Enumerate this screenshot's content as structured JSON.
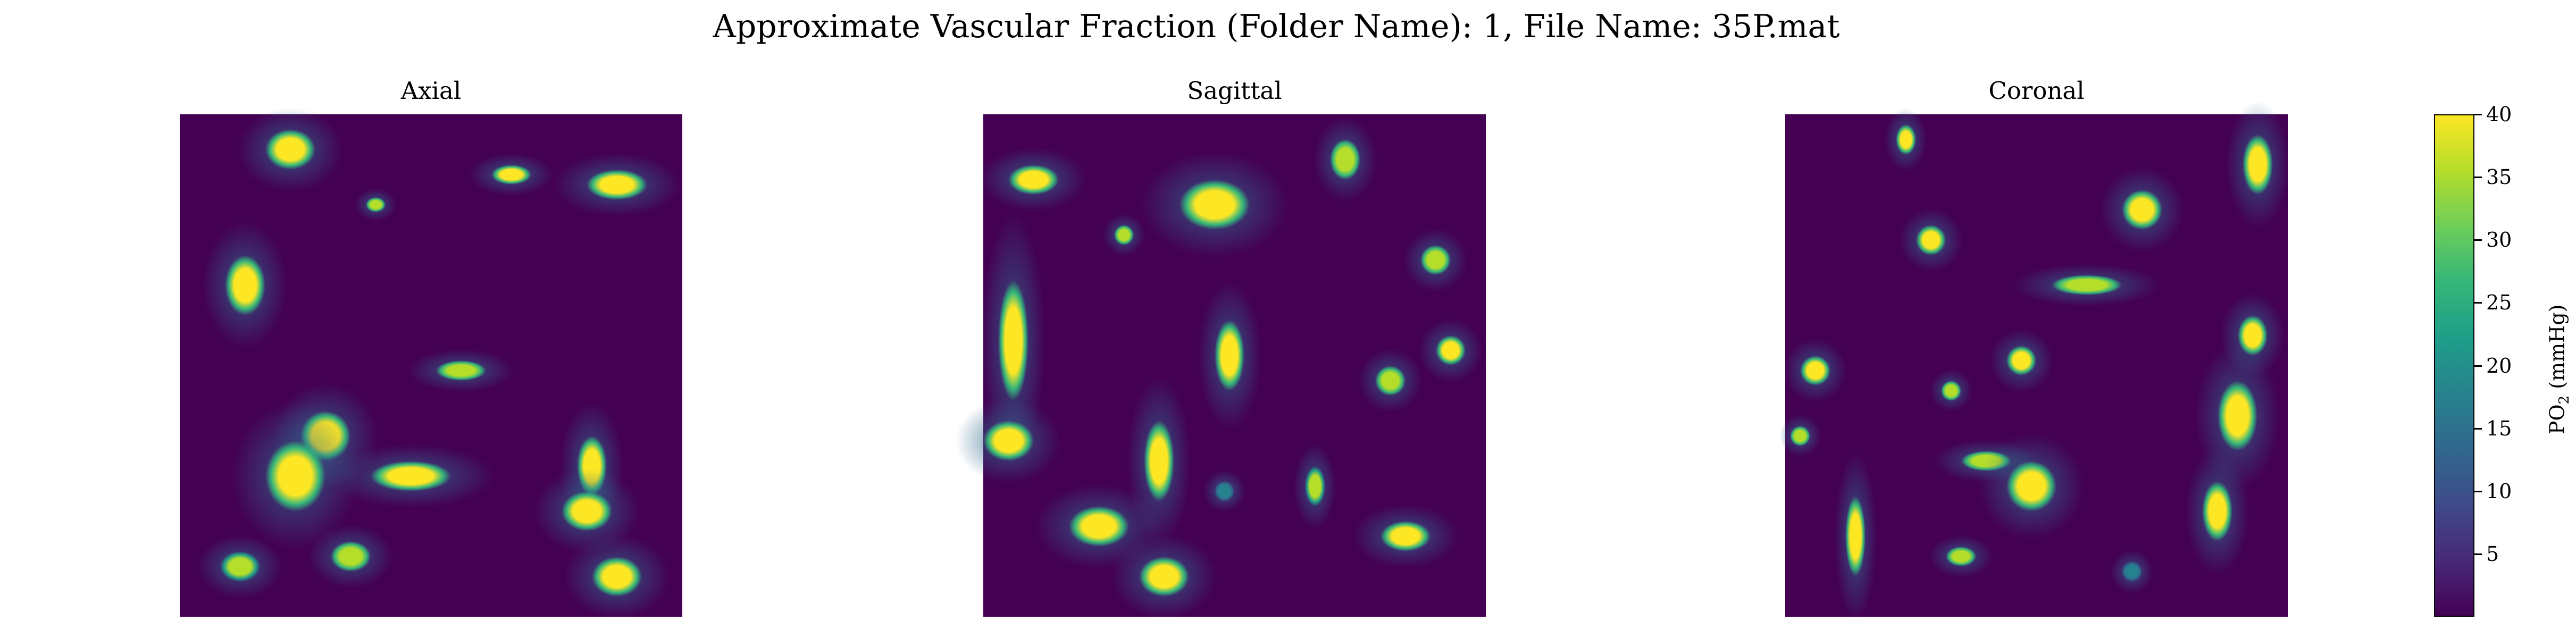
{
  "chart_data": {
    "type": "heatmap",
    "title": "Approximate Vascular Fraction (Folder Name): 1, File Name: 35P.mat",
    "colormap": "viridis",
    "panels": [
      {
        "title": "Axial",
        "blobs": [
          {
            "x": 0.22,
            "y": 0.07,
            "rx": 0.05,
            "ry": 0.04,
            "v": 40
          },
          {
            "x": 0.39,
            "y": 0.18,
            "rx": 0.02,
            "ry": 0.015,
            "v": 36
          },
          {
            "x": 0.66,
            "y": 0.12,
            "rx": 0.04,
            "ry": 0.02,
            "v": 38
          },
          {
            "x": 0.87,
            "y": 0.14,
            "rx": 0.06,
            "ry": 0.03,
            "v": 40
          },
          {
            "x": 0.13,
            "y": 0.34,
            "rx": 0.04,
            "ry": 0.06,
            "v": 38
          },
          {
            "x": 0.56,
            "y": 0.51,
            "rx": 0.05,
            "ry": 0.02,
            "v": 36
          },
          {
            "x": 0.29,
            "y": 0.64,
            "rx": 0.05,
            "ry": 0.05,
            "v": 40
          },
          {
            "x": 0.23,
            "y": 0.72,
            "rx": 0.06,
            "ry": 0.07,
            "v": 40
          },
          {
            "x": 0.46,
            "y": 0.72,
            "rx": 0.08,
            "ry": 0.03,
            "v": 38
          },
          {
            "x": 0.82,
            "y": 0.7,
            "rx": 0.03,
            "ry": 0.06,
            "v": 40
          },
          {
            "x": 0.81,
            "y": 0.79,
            "rx": 0.05,
            "ry": 0.04,
            "v": 40
          },
          {
            "x": 0.34,
            "y": 0.88,
            "rx": 0.04,
            "ry": 0.03,
            "v": 36
          },
          {
            "x": 0.12,
            "y": 0.9,
            "rx": 0.04,
            "ry": 0.03,
            "v": 34
          },
          {
            "x": 0.87,
            "y": 0.92,
            "rx": 0.05,
            "ry": 0.04,
            "v": 40
          }
        ]
      },
      {
        "title": "Sagittal",
        "blobs": [
          {
            "x": 0.1,
            "y": 0.13,
            "rx": 0.05,
            "ry": 0.03,
            "v": 38
          },
          {
            "x": 0.72,
            "y": 0.09,
            "rx": 0.03,
            "ry": 0.04,
            "v": 36
          },
          {
            "x": 0.28,
            "y": 0.24,
            "rx": 0.02,
            "ry": 0.02,
            "v": 36
          },
          {
            "x": 0.46,
            "y": 0.18,
            "rx": 0.07,
            "ry": 0.05,
            "v": 38
          },
          {
            "x": 0.9,
            "y": 0.29,
            "rx": 0.03,
            "ry": 0.03,
            "v": 36
          },
          {
            "x": 0.06,
            "y": 0.45,
            "rx": 0.03,
            "ry": 0.12,
            "v": 40
          },
          {
            "x": 0.49,
            "y": 0.48,
            "rx": 0.03,
            "ry": 0.07,
            "v": 38
          },
          {
            "x": 0.93,
            "y": 0.47,
            "rx": 0.03,
            "ry": 0.03,
            "v": 38
          },
          {
            "x": 0.81,
            "y": 0.53,
            "rx": 0.03,
            "ry": 0.03,
            "v": 36
          },
          {
            "x": 0.05,
            "y": 0.65,
            "rx": 0.05,
            "ry": 0.04,
            "v": 40
          },
          {
            "x": 0.35,
            "y": 0.69,
            "rx": 0.03,
            "ry": 0.08,
            "v": 38
          },
          {
            "x": 0.66,
            "y": 0.74,
            "rx": 0.02,
            "ry": 0.04,
            "v": 34
          },
          {
            "x": 0.23,
            "y": 0.82,
            "rx": 0.06,
            "ry": 0.04,
            "v": 38
          },
          {
            "x": 0.84,
            "y": 0.84,
            "rx": 0.05,
            "ry": 0.03,
            "v": 40
          },
          {
            "x": 0.36,
            "y": 0.92,
            "rx": 0.05,
            "ry": 0.04,
            "v": 40
          },
          {
            "x": 0.48,
            "y": 0.75,
            "rx": 0.02,
            "ry": 0.02,
            "v": 18
          }
        ]
      },
      {
        "title": "Coronal",
        "blobs": [
          {
            "x": 0.24,
            "y": 0.05,
            "rx": 0.02,
            "ry": 0.03,
            "v": 38
          },
          {
            "x": 0.94,
            "y": 0.1,
            "rx": 0.03,
            "ry": 0.06,
            "v": 38
          },
          {
            "x": 0.29,
            "y": 0.25,
            "rx": 0.03,
            "ry": 0.03,
            "v": 40
          },
          {
            "x": 0.71,
            "y": 0.19,
            "rx": 0.04,
            "ry": 0.04,
            "v": 40
          },
          {
            "x": 0.6,
            "y": 0.34,
            "rx": 0.07,
            "ry": 0.02,
            "v": 36
          },
          {
            "x": 0.93,
            "y": 0.44,
            "rx": 0.03,
            "ry": 0.04,
            "v": 38
          },
          {
            "x": 0.06,
            "y": 0.51,
            "rx": 0.03,
            "ry": 0.03,
            "v": 38
          },
          {
            "x": 0.47,
            "y": 0.49,
            "rx": 0.03,
            "ry": 0.03,
            "v": 38
          },
          {
            "x": 0.33,
            "y": 0.55,
            "rx": 0.02,
            "ry": 0.02,
            "v": 36
          },
          {
            "x": 0.9,
            "y": 0.6,
            "rx": 0.04,
            "ry": 0.07,
            "v": 40
          },
          {
            "x": 0.03,
            "y": 0.64,
            "rx": 0.02,
            "ry": 0.02,
            "v": 36
          },
          {
            "x": 0.4,
            "y": 0.69,
            "rx": 0.05,
            "ry": 0.02,
            "v": 36
          },
          {
            "x": 0.49,
            "y": 0.74,
            "rx": 0.05,
            "ry": 0.05,
            "v": 40
          },
          {
            "x": 0.86,
            "y": 0.79,
            "rx": 0.03,
            "ry": 0.06,
            "v": 40
          },
          {
            "x": 0.14,
            "y": 0.84,
            "rx": 0.02,
            "ry": 0.08,
            "v": 38
          },
          {
            "x": 0.35,
            "y": 0.88,
            "rx": 0.03,
            "ry": 0.02,
            "v": 36
          },
          {
            "x": 0.69,
            "y": 0.91,
            "rx": 0.02,
            "ry": 0.02,
            "v": 18
          }
        ]
      }
    ],
    "colorbar": {
      "label_main": "PO",
      "label_sub": "2",
      "label_unit": " (mmHg)",
      "vmin": 0,
      "vmax": 40,
      "ticks": [
        5,
        10,
        15,
        20,
        25,
        30,
        35,
        40
      ]
    },
    "grid": false
  }
}
